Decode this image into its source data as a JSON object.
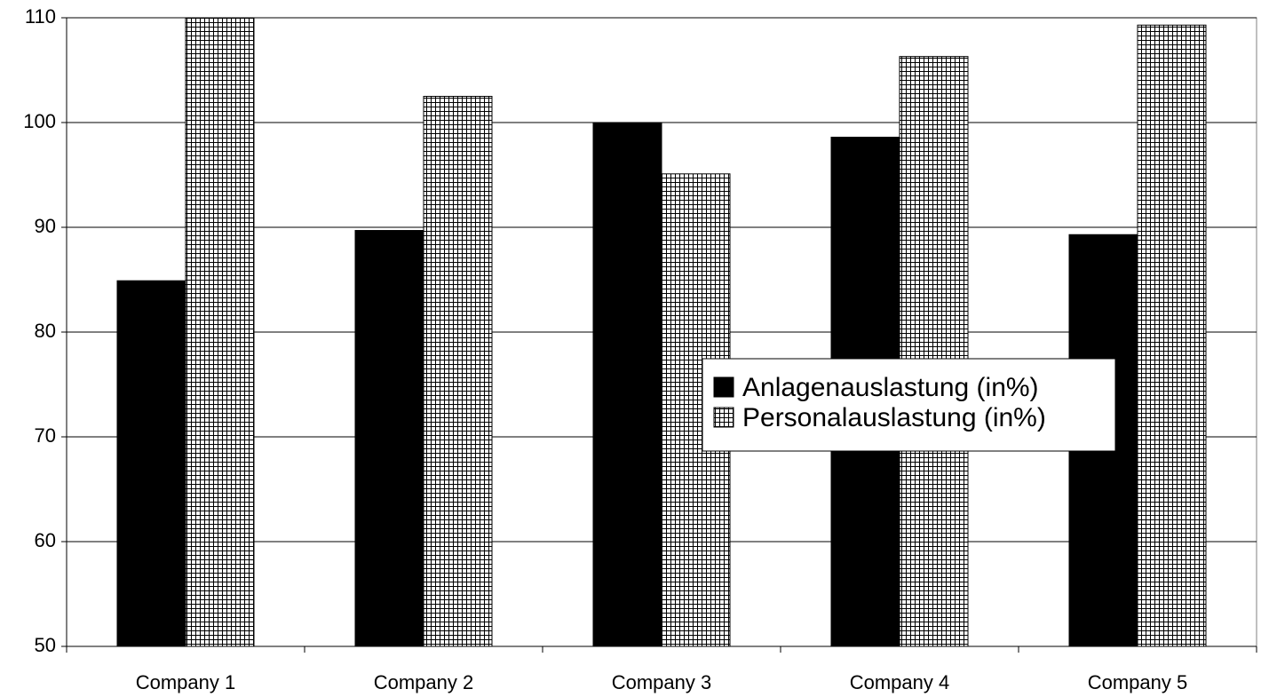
{
  "chart_data": {
    "type": "bar",
    "categories": [
      "Company 1",
      "Company 2",
      "Company 3",
      "Company 4",
      "Company 5"
    ],
    "series": [
      {
        "name": "Anlagenauslastung (in%)",
        "color": "#000000",
        "values": [
          84.9,
          89.7,
          100,
          98.6,
          89.3
        ]
      },
      {
        "name": "Personalauslastung (in%)",
        "color": "#000000",
        "pattern": "grid",
        "values": [
          110,
          102.5,
          95.1,
          106.3,
          109.3
        ]
      }
    ],
    "ylim": [
      50,
      110
    ],
    "yticks": [
      50,
      60,
      70,
      80,
      90,
      100,
      110
    ],
    "grid": true,
    "legend": "right"
  }
}
